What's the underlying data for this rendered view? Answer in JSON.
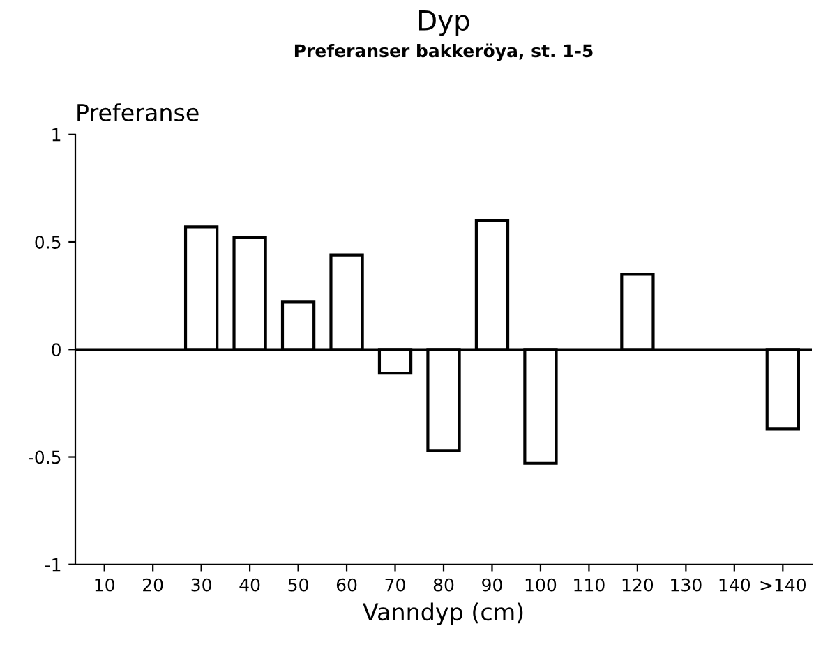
{
  "chart_data": {
    "type": "bar",
    "title": "Dyp",
    "subtitle": "Preferanser bakkeröya, st. 1-5",
    "xlabel": "Vanndyp (cm)",
    "ylabel": "Preferanse",
    "categories": [
      "10",
      "20",
      "30",
      "40",
      "50",
      "60",
      "70",
      "80",
      "90",
      "100",
      "110",
      "120",
      "130",
      "140",
      ">140"
    ],
    "values": [
      0,
      0,
      0.57,
      0.52,
      0.22,
      0.44,
      -0.11,
      -0.47,
      0.6,
      -0.53,
      0,
      0.35,
      0,
      0,
      -0.37
    ],
    "color": "#ffffff",
    "ylim": [
      -1,
      1
    ],
    "yticks": [
      1,
      0.5,
      0,
      -0.5,
      -1
    ],
    "ref_lines": [
      {
        "axis": "y",
        "value": 0,
        "color": "#000000"
      }
    ],
    "grid": false,
    "legend": false
  }
}
